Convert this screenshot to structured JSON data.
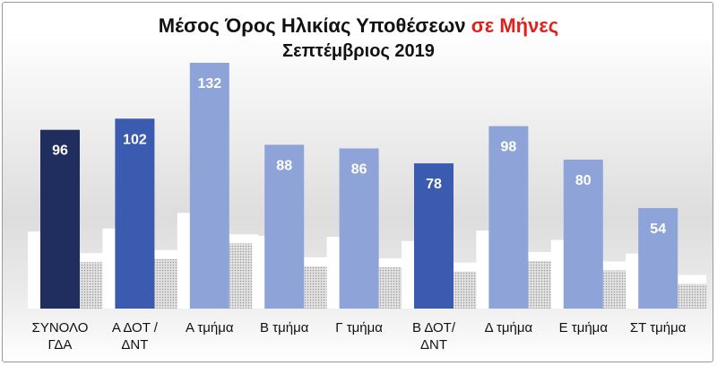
{
  "title": {
    "line1_main": "Μέσος Όρος Ηλικίας Υποθέσεων",
    "line1_highlight": "σε Μήνες",
    "line2": "Σεπτέμβριος 2019"
  },
  "colors": {
    "highlight": "#e0201b",
    "dark_navy": "#1f2e5e",
    "medium_blue": "#3b5bb0",
    "light_blue": "#8ea4d8"
  },
  "chart_data": {
    "type": "bar",
    "title": "Μέσος Όρος Ηλικίας Υποθέσεων σε Μήνες Σεπτέμβριος 2019",
    "categories": [
      [
        "ΣΥΝΟΛΟ",
        "ΓΔΑ"
      ],
      [
        "Α ΔΟΤ /",
        "ΔΝΤ"
      ],
      [
        "Α τμήμα"
      ],
      [
        "Β τμήμα"
      ],
      [
        "Γ τμήμα"
      ],
      [
        "Β ΔΟΤ/",
        "ΔΝΤ"
      ],
      [
        "Δ τμήμα"
      ],
      [
        "Ε τμήμα"
      ],
      [
        "ΣΤ τμήμα"
      ]
    ],
    "values": [
      96,
      102,
      132,
      88,
      86,
      78,
      98,
      80,
      54
    ],
    "bar_colors": [
      "#1f2e5e",
      "#3b5bb0",
      "#8ea4d8",
      "#8ea4d8",
      "#8ea4d8",
      "#3b5bb0",
      "#8ea4d8",
      "#8ea4d8",
      "#8ea4d8"
    ],
    "ylim": [
      0,
      140
    ],
    "grid": false,
    "legend": "none"
  }
}
